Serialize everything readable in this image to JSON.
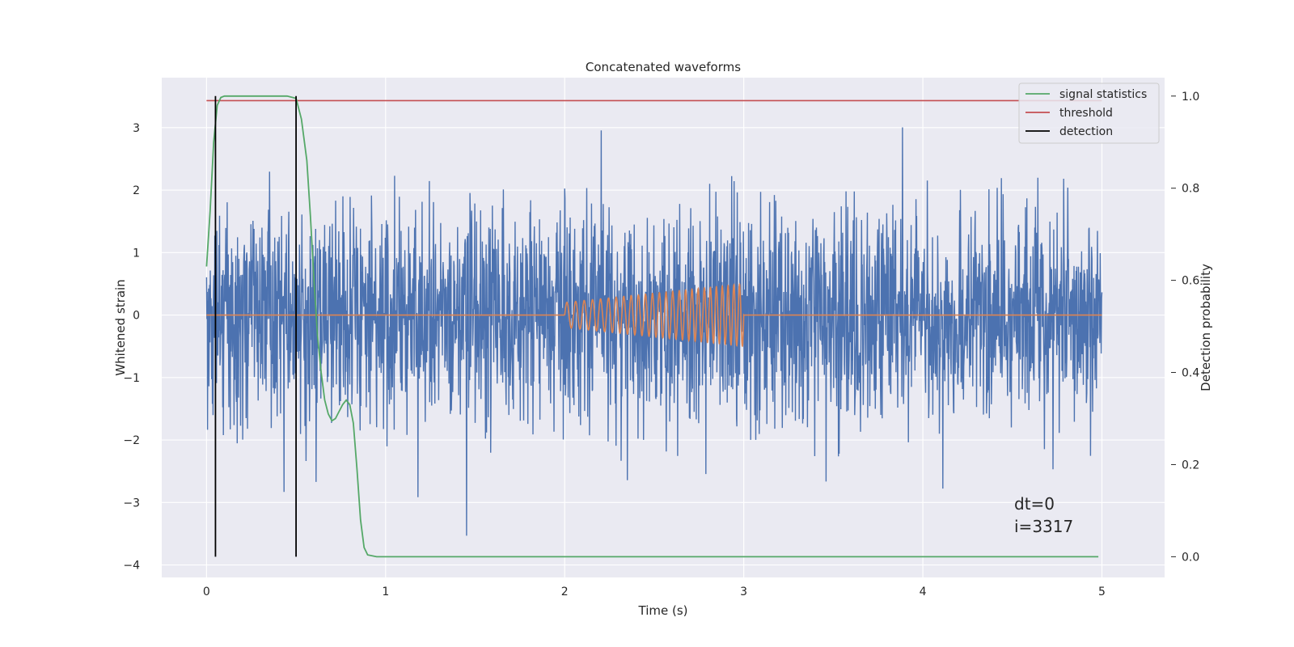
{
  "chart_data": {
    "type": "line",
    "title": "Concatenated waveforms",
    "xlabel": "Time (s)",
    "ylabel": "Whitened strain",
    "ylabel_right": "Detection probability",
    "xlim": [
      -0.25,
      5.35
    ],
    "ylim": [
      -4.2,
      3.8
    ],
    "ylim_right": [
      -0.045,
      1.04
    ],
    "x_ticks": [
      0,
      1,
      2,
      3,
      4,
      5
    ],
    "x_tick_labels": [
      "0",
      "1",
      "2",
      "3",
      "4",
      "5"
    ],
    "y_ticks": [
      -4,
      -3,
      -2,
      -1,
      0,
      1,
      2,
      3
    ],
    "y_tick_labels": [
      "−4",
      "−3",
      "−2",
      "−1",
      "0",
      "1",
      "2",
      "3"
    ],
    "y_ticks_right": [
      0.0,
      0.2,
      0.4,
      0.6,
      0.8,
      1.0
    ],
    "y_tick_labels_right": [
      "0.0",
      "0.2",
      "0.4",
      "0.6",
      "0.8",
      "1.0"
    ],
    "grid": true,
    "legend_position": "top-right",
    "series": [
      {
        "key": "noise",
        "axis": "left",
        "color": "#4c72b0",
        "kind": "whitened noise",
        "x_start": 0,
        "x_end": 5,
        "approx_std": 0.85,
        "approx_range": [
          -3.85,
          3.4
        ]
      },
      {
        "key": "waveform",
        "axis": "left",
        "color": "#dd8452",
        "kind": "injected chirp",
        "x_start": 0,
        "x_end": 5,
        "chirp_start": 2.0,
        "chirp_end": 3.0,
        "amplitude_start": 0.2,
        "amplitude_end": 0.5
      },
      {
        "key": "signal_statistics",
        "name": "signal statistics",
        "axis": "right",
        "color": "#55a868",
        "points": [
          [
            0,
            0.63
          ],
          [
            0.02,
            0.75
          ],
          [
            0.04,
            0.9
          ],
          [
            0.06,
            0.98
          ],
          [
            0.08,
            0.997
          ],
          [
            0.1,
            1.0
          ],
          [
            0.3,
            1.0
          ],
          [
            0.45,
            1.0
          ],
          [
            0.5,
            0.995
          ],
          [
            0.53,
            0.95
          ],
          [
            0.56,
            0.86
          ],
          [
            0.58,
            0.74
          ],
          [
            0.6,
            0.6
          ],
          [
            0.62,
            0.48
          ],
          [
            0.64,
            0.4
          ],
          [
            0.66,
            0.34
          ],
          [
            0.68,
            0.31
          ],
          [
            0.7,
            0.295
          ],
          [
            0.72,
            0.3
          ],
          [
            0.74,
            0.315
          ],
          [
            0.76,
            0.33
          ],
          [
            0.78,
            0.34
          ],
          [
            0.8,
            0.33
          ],
          [
            0.82,
            0.29
          ],
          [
            0.84,
            0.19
          ],
          [
            0.86,
            0.08
          ],
          [
            0.88,
            0.02
          ],
          [
            0.9,
            0.004
          ],
          [
            0.95,
            0.0
          ],
          [
            1.2,
            0.0
          ],
          [
            2.0,
            0.0
          ],
          [
            3.0,
            0.0
          ],
          [
            4.0,
            0.0
          ],
          [
            4.98,
            0.0
          ]
        ]
      },
      {
        "key": "threshold",
        "name": "threshold",
        "axis": "right",
        "color": "#c44e52",
        "value": 0.99,
        "x_start": 0,
        "x_end": 5
      }
    ],
    "detections": {
      "name": "detection",
      "color": "#000000",
      "x": [
        0.05,
        0.5
      ],
      "range_right": [
        0.0,
        1.0
      ]
    },
    "annotation": {
      "x": 4.5,
      "lines": [
        "dt=0",
        "i=3317"
      ]
    }
  }
}
